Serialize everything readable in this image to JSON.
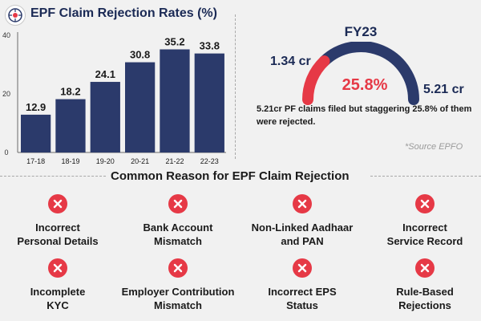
{
  "chart_data": [
    {
      "type": "bar",
      "title": "EPF Claim Rejection Rates  (%)",
      "categories": [
        "17-18",
        "18-19",
        "19-20",
        "20-21",
        "21-22",
        "22-23"
      ],
      "values": [
        12.9,
        18.2,
        24.1,
        30.8,
        35.2,
        33.8
      ],
      "data_labels": [
        "12.9",
        "18.2",
        "24.1",
        "30.8",
        "35.2",
        "33.8"
      ],
      "yticks": [
        "40",
        "20",
        "0"
      ],
      "ylim": [
        0,
        40
      ],
      "grid": false,
      "bar_color": "#2b3a6b"
    },
    {
      "type": "pie",
      "subtype": "semicircle-gauge",
      "title": "FY23",
      "total_label": "5.21 cr",
      "rejected_label": "1.34 cr",
      "percent_label": "25.8%",
      "rejected_fraction": 0.258,
      "colors": {
        "rejected": "#e63946",
        "remaining": "#2b3a6b"
      }
    }
  ],
  "gauge_desc": "5.21cr PF claims filed but staggering 25.8% of them were rejected.",
  "source": "*Source EPFO",
  "section_title": "Common Reason for EPF Claim Rejection",
  "reasons": [
    {
      "label": "Incorrect\nPersonal Details",
      "icon": "x-icon"
    },
    {
      "label": "Bank Account\nMismatch",
      "icon": "x-icon"
    },
    {
      "label": "Non-Linked Aadhaar\nand PAN",
      "icon": "x-icon"
    },
    {
      "label": "Incorrect\nService Record",
      "icon": "x-icon"
    },
    {
      "label": "Incomplete\nKYC",
      "icon": "x-icon"
    },
    {
      "label": "Employer Contribution\nMismatch",
      "icon": "x-icon"
    },
    {
      "label": "Incorrect EPS\nStatus",
      "icon": "x-icon"
    },
    {
      "label": "Rule-Based\nRejections",
      "icon": "x-icon"
    }
  ],
  "colors": {
    "accent": "#e63946",
    "navy": "#1b2a55",
    "background": "#f1f1f1"
  },
  "logo_icon": "epfo-logo-icon"
}
